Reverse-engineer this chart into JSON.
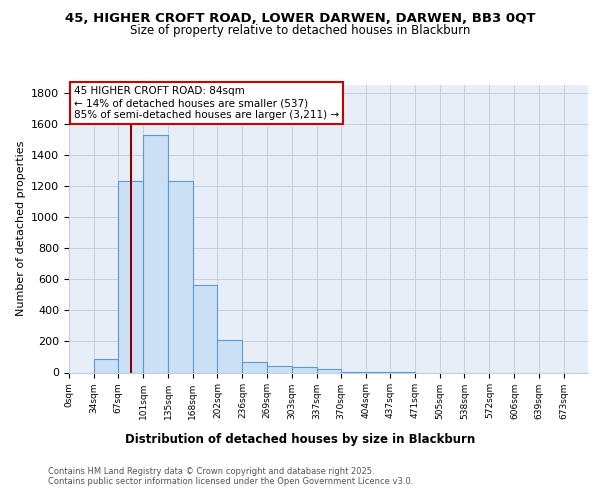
{
  "title1": "45, HIGHER CROFT ROAD, LOWER DARWEN, DARWEN, BB3 0QT",
  "title2": "Size of property relative to detached houses in Blackburn",
  "xlabel": "Distribution of detached houses by size in Blackburn",
  "ylabel": "Number of detached properties",
  "bin_edges": [
    0,
    34,
    67,
    101,
    135,
    168,
    202,
    236,
    269,
    303,
    337,
    370,
    404,
    437,
    471,
    505,
    538,
    572,
    606,
    639,
    673
  ],
  "bin_labels": [
    "0sqm",
    "34sqm",
    "67sqm",
    "101sqm",
    "135sqm",
    "168sqm",
    "202sqm",
    "236sqm",
    "269sqm",
    "303sqm",
    "337sqm",
    "370sqm",
    "404sqm",
    "437sqm",
    "471sqm",
    "505sqm",
    "538sqm",
    "572sqm",
    "606sqm",
    "639sqm",
    "673sqm"
  ],
  "counts": [
    0,
    90,
    1230,
    1530,
    1230,
    560,
    210,
    65,
    45,
    33,
    20,
    5,
    2,
    1,
    0,
    0,
    0,
    0,
    0,
    0,
    0
  ],
  "property_size": 84,
  "bar_color": "#cce0f5",
  "bar_edge_color": "#5b9bd5",
  "line_color": "#8b0000",
  "annotation_line1": "45 HIGHER CROFT ROAD: 84sqm",
  "annotation_line2": "← 14% of detached houses are smaller (537)",
  "annotation_line3": "85% of semi-detached houses are larger (3,211) →",
  "annotation_box_color": "#ffffff",
  "annotation_box_edge": "#cc0000",
  "ylim": [
    0,
    1850
  ],
  "background_color": "#e8eef8",
  "footer1": "Contains HM Land Registry data © Crown copyright and database right 2025.",
  "footer2": "Contains public sector information licensed under the Open Government Licence v3.0."
}
